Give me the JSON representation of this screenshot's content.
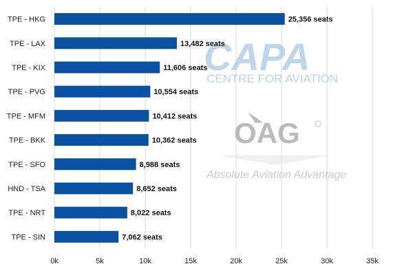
{
  "chart_data": {
    "type": "bar",
    "orientation": "horizontal",
    "categories": [
      "TPE - HKG",
      "TPE - LAX",
      "TPE - KIX",
      "TPE - PVG",
      "TPE - MFM",
      "TPE - BKK",
      "TPE - SFO",
      "HND - TSA",
      "TPE - NRT",
      "TPE - SIN"
    ],
    "values": [
      25356,
      13482,
      11606,
      10554,
      10412,
      10362,
      8988,
      8652,
      8022,
      7062
    ],
    "data_labels": [
      "25,356 seats",
      "13,482 seats",
      "11,606 seats",
      "10,554 seats",
      "10,412 seats",
      "10,362 seats",
      "8,988 seats",
      "8,652 seats",
      "8,022 seats",
      "7,062 seats"
    ],
    "title": "",
    "xlabel": "",
    "ylabel": "",
    "xlim": [
      0,
      35000
    ],
    "x_ticks": [
      0,
      5000,
      10000,
      15000,
      20000,
      25000,
      30000,
      35000
    ],
    "x_tick_labels": [
      "0k",
      "5k",
      "10k",
      "15k",
      "20k",
      "25k",
      "30k",
      "35k"
    ],
    "grid": "vertical",
    "legend": "none",
    "bar_color": "#0A52A1",
    "grid_color": "#D9D9D9"
  },
  "watermarks": {
    "capa_text": "CAPA",
    "capa_sub": "CENTRE FOR AVIATION",
    "oag_text": "OAG",
    "oag_tagline": "Absolute Aviation Advantage"
  }
}
